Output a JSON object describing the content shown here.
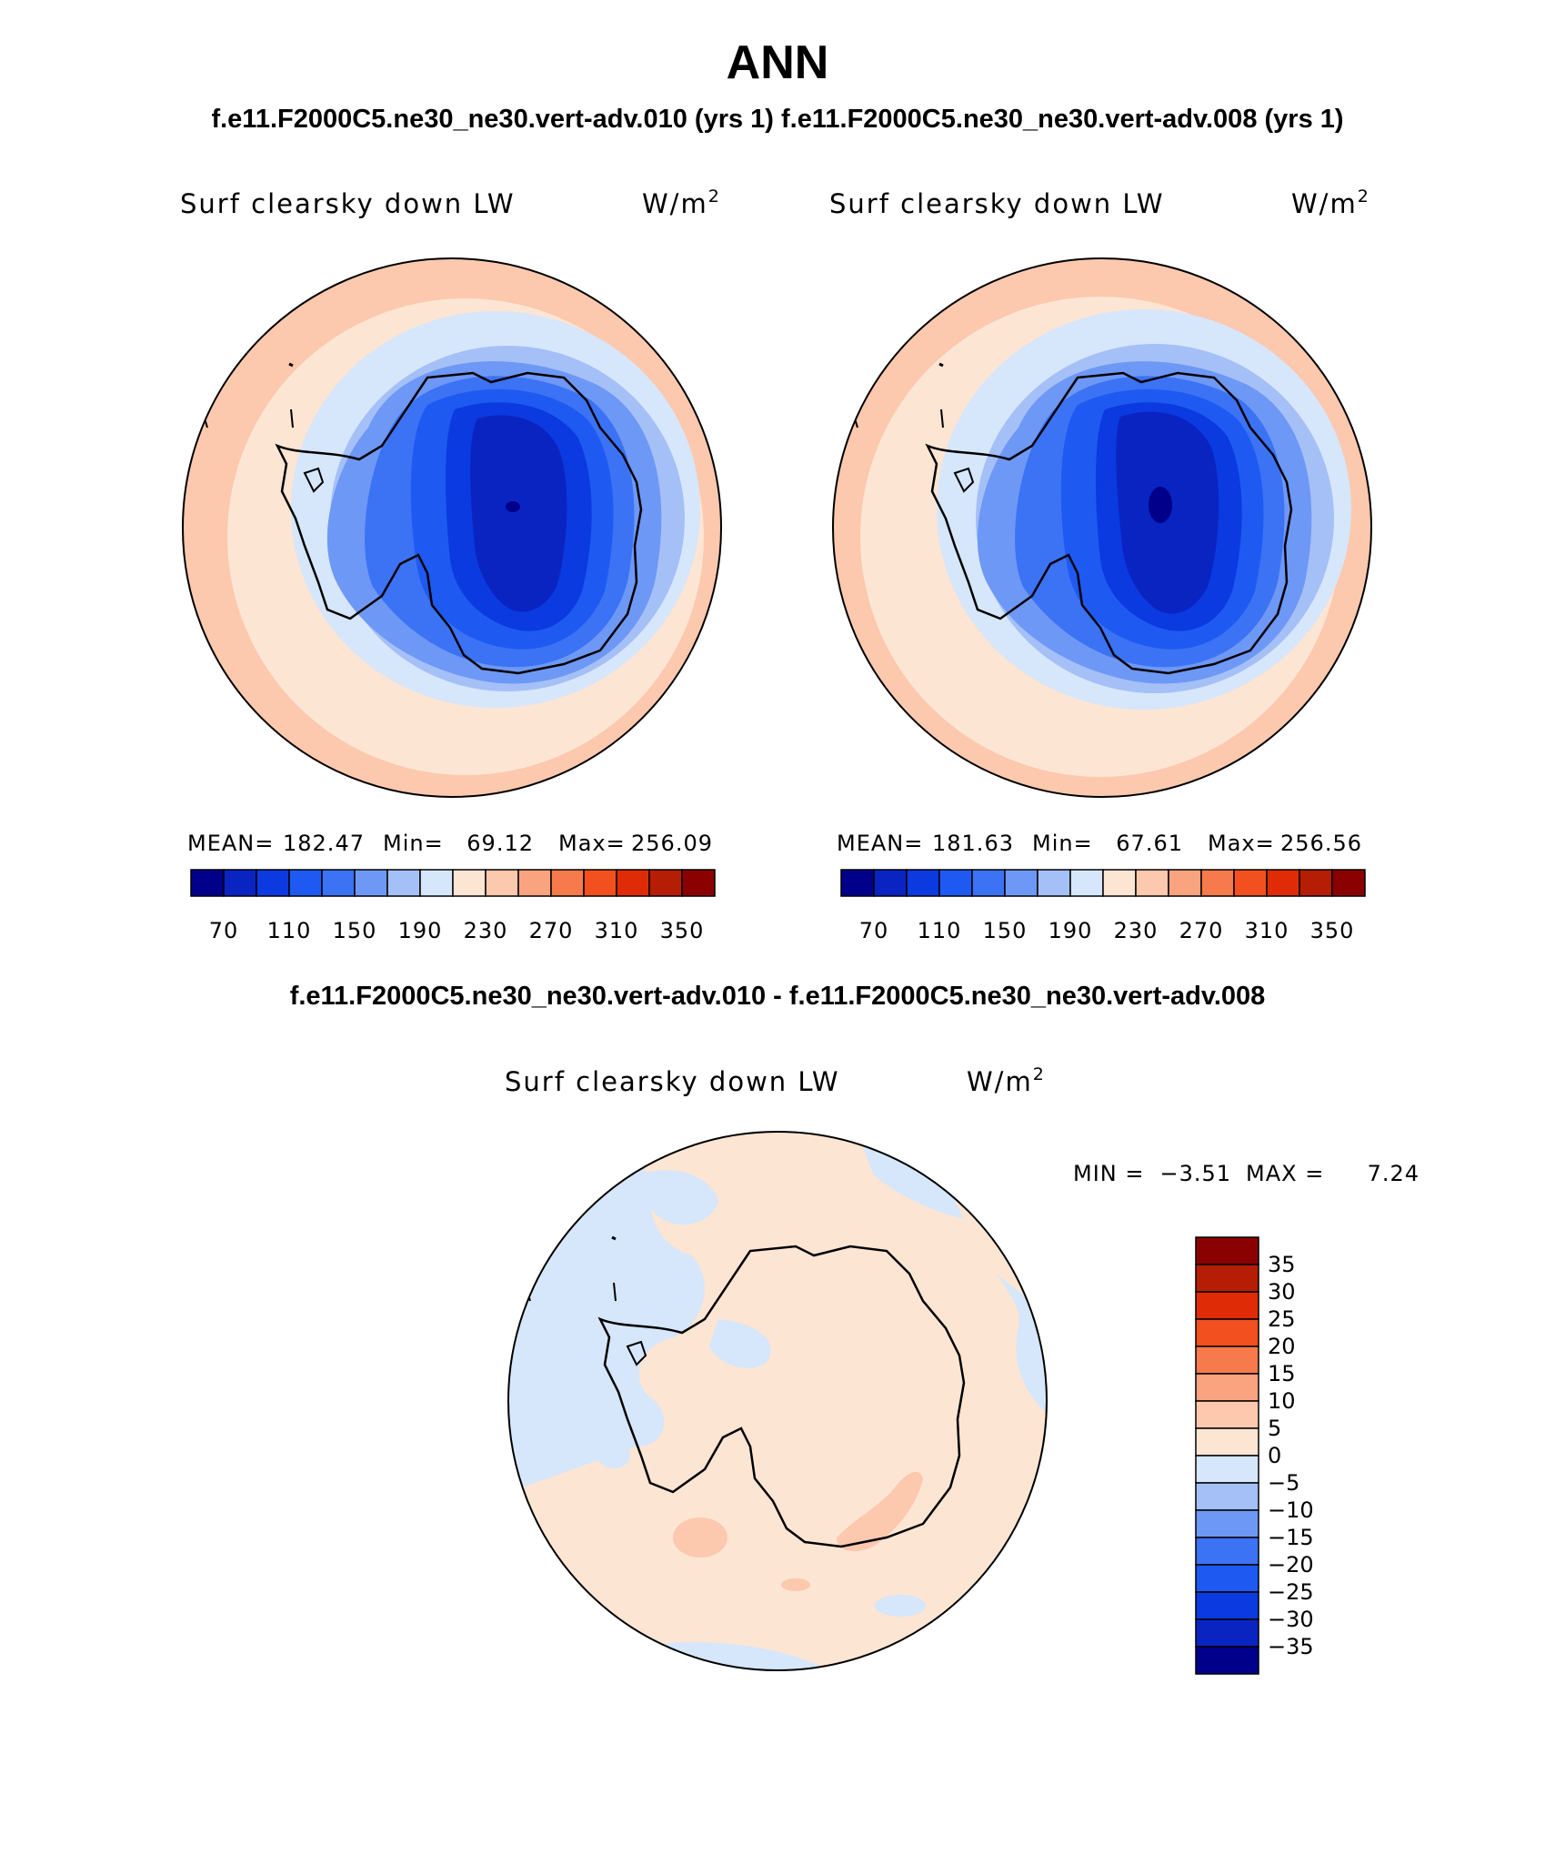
{
  "title": "ANN",
  "subtitle": "f.e11.F2000C5.ne30_ne30.vert-adv.010 (yrs 1) f.e11.F2000C5.ne30_ne30.vert-adv.008 (yrs 1)",
  "diff_title": "f.e11.F2000C5.ne30_ne30.vert-adv.010 - f.e11.F2000C5.ne30_ne30.vert-adv.008",
  "abs_colors": [
    "#00008b",
    "#0a24c2",
    "#0b3ae0",
    "#1e5af2",
    "#3c73f5",
    "#6e98f5",
    "#a5c0f7",
    "#d6e6fb",
    "#fce5d3",
    "#fcc8ae",
    "#f9a47f",
    "#f77a4c",
    "#f2501e",
    "#df2c07",
    "#b51e05",
    "#8b0000"
  ],
  "abs_levels": [
    "70",
    "110",
    "150",
    "190",
    "230",
    "270",
    "310",
    "350"
  ],
  "diff_colors": [
    "#00008b",
    "#0a24c2",
    "#0b3ae0",
    "#1e5af2",
    "#3c73f5",
    "#6e98f5",
    "#a5c0f7",
    "#d6e6fb",
    "#fce5d3",
    "#fcc8ae",
    "#f9a47f",
    "#f77a4c",
    "#f2501e",
    "#df2c07",
    "#b51e05",
    "#8b0000"
  ],
  "diff_levels": [
    "35",
    "30",
    "25",
    "20",
    "15",
    "10",
    "5",
    "0",
    "−5",
    "−10",
    "−15",
    "−20",
    "−25",
    "−30",
    "−35"
  ],
  "panels": [
    {
      "variable": "Surf clearsky down LW",
      "units": "W/m",
      "units_sup": "2",
      "mean_label": "MEAN=",
      "mean": "182.47",
      "min_label": "Min=",
      "min": "69.12",
      "max_label": "Max=",
      "max": "256.09"
    },
    {
      "variable": "Surf clearsky down LW",
      "units": "W/m",
      "units_sup": "2",
      "mean_label": "MEAN=",
      "mean": "181.63",
      "min_label": "Min=",
      "min": "67.61",
      "max_label": "Max=",
      "max": "256.56"
    },
    {
      "variable": "Surf clearsky down LW",
      "units": "W/m",
      "units_sup": "2",
      "min_label": "MIN =",
      "min": "−3.51",
      "max_label": "MAX =",
      "max": "7.24"
    }
  ]
}
